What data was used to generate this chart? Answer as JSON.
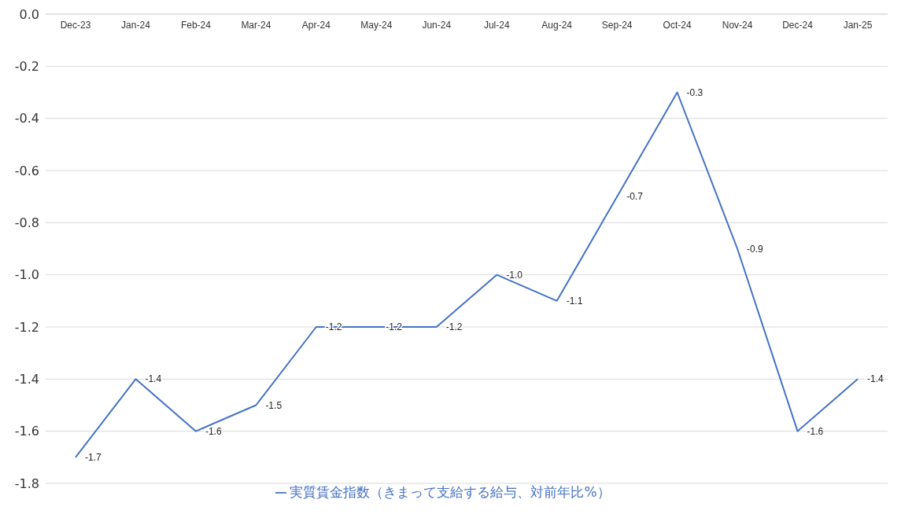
{
  "chart_data": {
    "type": "line",
    "categories": [
      "Dec-23",
      "Jan-24",
      "Feb-24",
      "Mar-24",
      "Apr-24",
      "May-24",
      "Jun-24",
      "Jul-24",
      "Aug-24",
      "Sep-24",
      "Oct-24",
      "Nov-24",
      "Dec-24",
      "Jan-25"
    ],
    "series": [
      {
        "name": "実質賃金指数（きまって支給する給与、対前年比%）",
        "color": "#4472c4",
        "values": [
          -1.7,
          -1.4,
          -1.6,
          -1.5,
          -1.2,
          -1.2,
          -1.2,
          -1.0,
          -1.1,
          -0.7,
          -0.3,
          -0.9,
          -1.6,
          -1.4
        ],
        "value_labels": [
          "-1.7",
          "-1.4",
          "-1.6",
          "-1.5",
          "-1.2",
          "-1.2",
          "-1.2",
          "-1.0",
          "-1.1",
          "-0.7",
          "-0.3",
          "-0.9",
          "-1.6",
          "-1.4"
        ]
      }
    ],
    "ylim": [
      -1.8,
      0
    ],
    "yticks": [
      {
        "value": -1.8,
        "label": "-1.8"
      },
      {
        "value": -1.6,
        "label": "-1.6"
      },
      {
        "value": -1.4,
        "label": "-1.4"
      },
      {
        "value": -1.2,
        "label": "-1.2"
      },
      {
        "value": -1.0,
        "label": "-1.0"
      },
      {
        "value": -0.8,
        "label": "-0.8"
      },
      {
        "value": -0.6,
        "label": "-0.6"
      },
      {
        "value": -0.4,
        "label": "-0.4"
      },
      {
        "value": -0.2,
        "label": "-0.2"
      },
      {
        "value": 0,
        "label": "0.0"
      }
    ],
    "grid": "y",
    "legend": "bottom",
    "marker": "none",
    "line_style": "solid"
  }
}
